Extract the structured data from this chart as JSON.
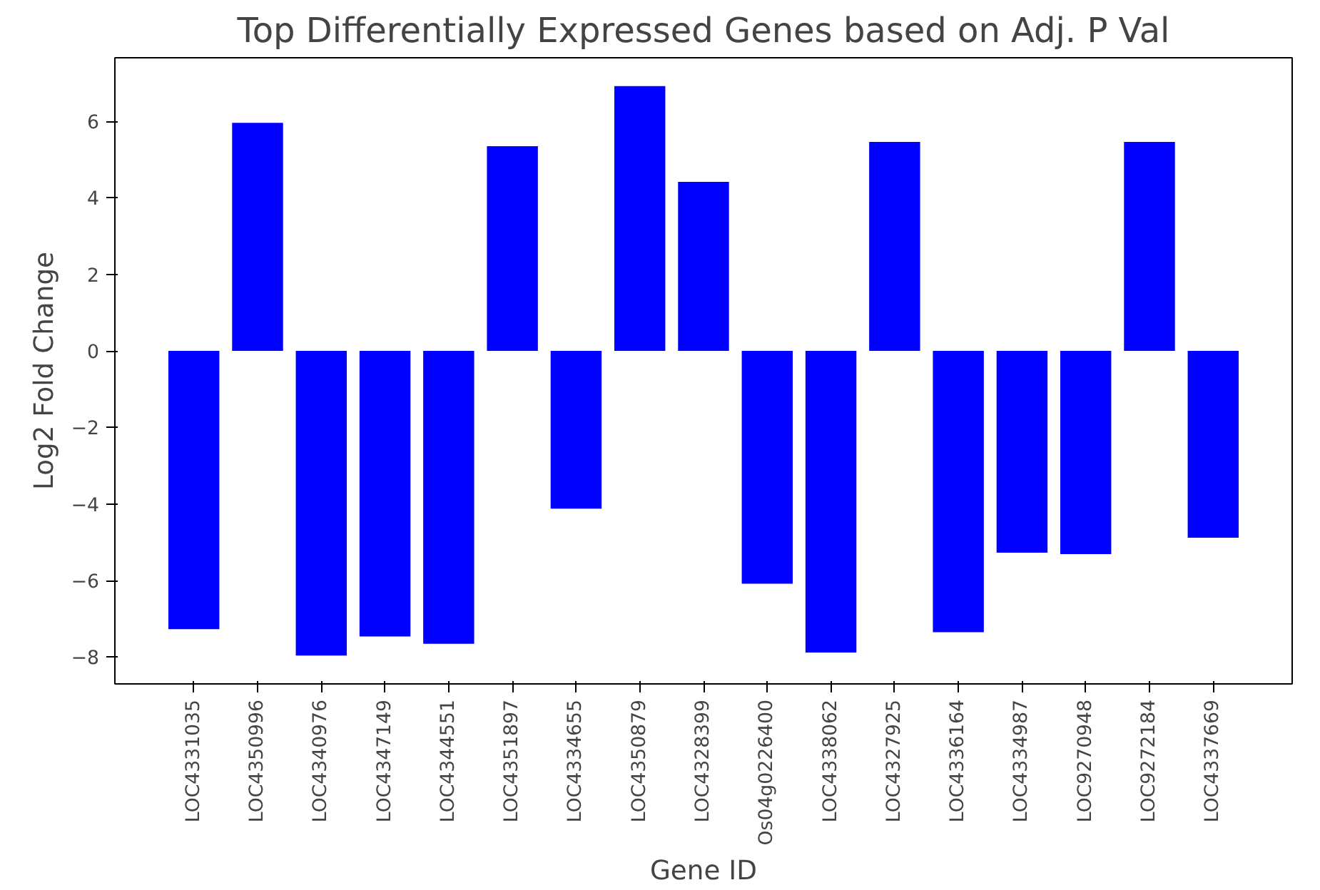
{
  "chart_data": {
    "type": "bar",
    "title": "Top Differentially Expressed Genes based on Adj. P Val",
    "xlabel": "Gene ID",
    "ylabel": "Log2 Fold Change",
    "categories": [
      "LOC4331035",
      "LOC4350996",
      "LOC4340976",
      "LOC4347149",
      "LOC4344551",
      "LOC4351897",
      "LOC4334655",
      "LOC4350879",
      "LOC4328399",
      "Os04g0226400",
      "LOC4338062",
      "LOC4327925",
      "LOC4336164",
      "LOC4334987",
      "LOC9270948",
      "LOC9272184",
      "LOC4337669"
    ],
    "values": [
      -7.27,
      5.96,
      -7.96,
      -7.46,
      -7.65,
      5.35,
      -4.12,
      6.92,
      4.42,
      -6.08,
      -7.88,
      5.46,
      -7.35,
      -5.27,
      -5.31,
      5.46,
      -4.88
    ],
    "color": "#0000ff",
    "ylim": [
      -8.7,
      7.66
    ],
    "yticks": [
      -8,
      -6,
      -4,
      -2,
      0,
      2,
      4,
      6
    ],
    "grid": false
  }
}
